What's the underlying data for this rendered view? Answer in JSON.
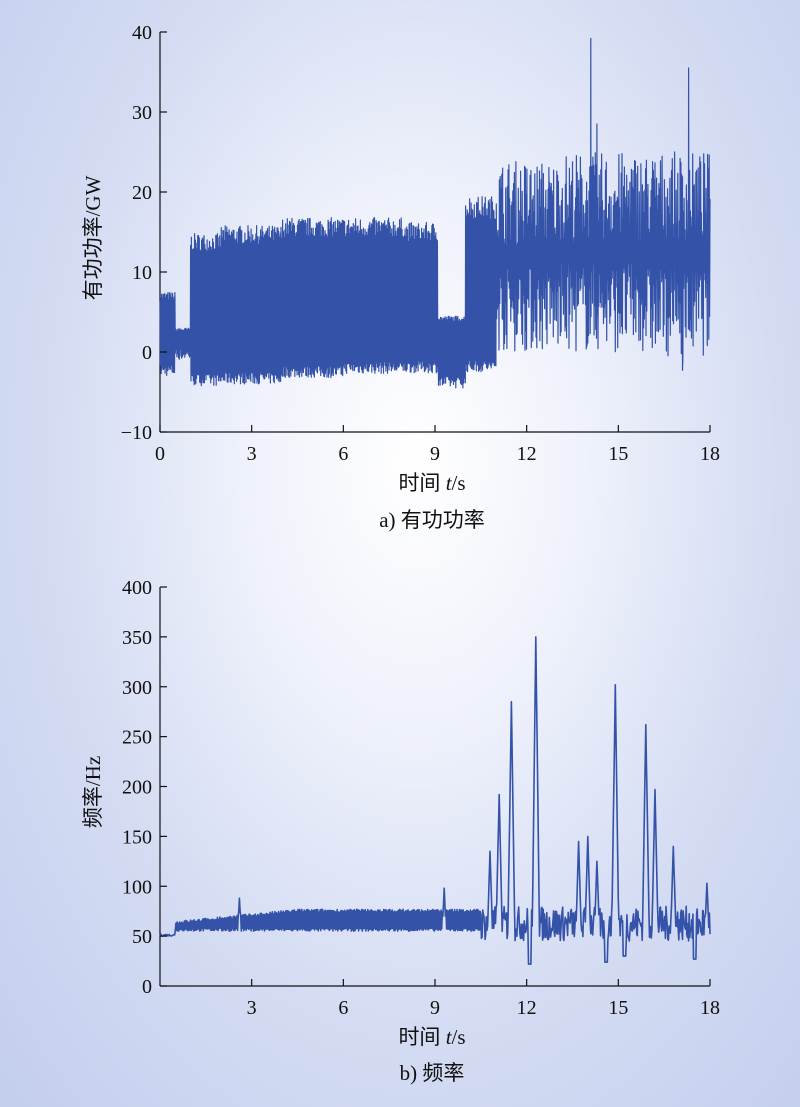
{
  "chart_data": [
    {
      "type": "line",
      "caption": "a) 有功功率",
      "ylabel": "有功功率/GW",
      "xlabel": {
        "prefix": "时间 ",
        "var": "t",
        "unit": "/s"
      },
      "xlim": [
        0,
        18
      ],
      "ylim": [
        -10,
        40
      ],
      "xticks": [
        "0",
        "3",
        "6",
        "9",
        "12",
        "15",
        "18"
      ],
      "yticks": [
        "−10",
        "0",
        "10",
        "20",
        "30",
        "40"
      ],
      "xtick_values": [
        0,
        3,
        6,
        9,
        12,
        15,
        18
      ],
      "ytick_values": [
        -10,
        0,
        10,
        20,
        30,
        40
      ],
      "line_color": "#3352a8",
      "segments": [
        {
          "t": [
            0,
            0.5
          ],
          "low": -3,
          "high": 7.5
        },
        {
          "t": [
            1.0,
            2.0
          ],
          "low": -4.2,
          "high": 14.8
        },
        {
          "t": [
            2.0,
            4.0
          ],
          "low": -4,
          "high": 15.8
        },
        {
          "t": [
            4.0,
            6.0
          ],
          "low": -3.2,
          "high": 16.8
        },
        {
          "t": [
            6.0,
            8.0
          ],
          "low": -2.7,
          "high": 16.8
        },
        {
          "t": [
            8.0,
            9.1
          ],
          "low": -2.6,
          "high": 16.2
        },
        {
          "t": [
            9.1,
            10.0
          ],
          "low": -4.5,
          "high": 4.5
        },
        {
          "t": [
            10.0,
            11.0
          ],
          "low": -2.5,
          "high": 19.5
        },
        {
          "t": [
            11.0,
            13.0
          ],
          "low": 0,
          "high": 24
        },
        {
          "t": [
            13.0,
            16.0
          ],
          "low": 0,
          "high": 25
        },
        {
          "t": [
            16.0,
            18.0
          ],
          "low": -0.5,
          "high": 25
        }
      ],
      "spikes": [
        {
          "t": 14.1,
          "value": 39.2
        },
        {
          "t": 17.3,
          "value": 35.5
        },
        {
          "t": 14.3,
          "value": 28.5
        },
        {
          "t": 17.1,
          "value": -2.3
        }
      ]
    },
    {
      "type": "line",
      "caption": "b) 频率",
      "ylabel": "频率/Hz",
      "xlabel": {
        "prefix": "时间 ",
        "var": "t",
        "unit": "/s"
      },
      "xlim": [
        0,
        18
      ],
      "ylim": [
        0,
        400
      ],
      "xticks": [
        "3",
        "6",
        "9",
        "12",
        "15",
        "18"
      ],
      "yticks": [
        "0",
        "50",
        "100",
        "150",
        "200",
        "250",
        "300",
        "350",
        "400"
      ],
      "xtick_values": [
        3,
        6,
        9,
        12,
        15,
        18
      ],
      "ytick_values": [
        0,
        50,
        100,
        150,
        200,
        250,
        300,
        350,
        400
      ],
      "line_color": "#3352a8",
      "peaks": [
        {
          "t": 2.6,
          "value": 88
        },
        {
          "t": 9.3,
          "value": 98
        },
        {
          "t": 10.8,
          "value": 135
        },
        {
          "t": 11.1,
          "value": 192
        },
        {
          "t": 11.5,
          "value": 285
        },
        {
          "t": 12.3,
          "value": 350
        },
        {
          "t": 13.7,
          "value": 145
        },
        {
          "t": 14.0,
          "value": 150
        },
        {
          "t": 14.3,
          "value": 125
        },
        {
          "t": 14.9,
          "value": 302
        },
        {
          "t": 15.9,
          "value": 262
        },
        {
          "t": 16.2,
          "value": 197
        },
        {
          "t": 16.8,
          "value": 140
        },
        {
          "t": 17.9,
          "value": 103
        }
      ],
      "troughs": [
        {
          "t": 12.1,
          "value": 22
        },
        {
          "t": 14.6,
          "value": 24
        },
        {
          "t": 15.2,
          "value": 30
        },
        {
          "t": 17.5,
          "value": 27
        }
      ]
    }
  ]
}
